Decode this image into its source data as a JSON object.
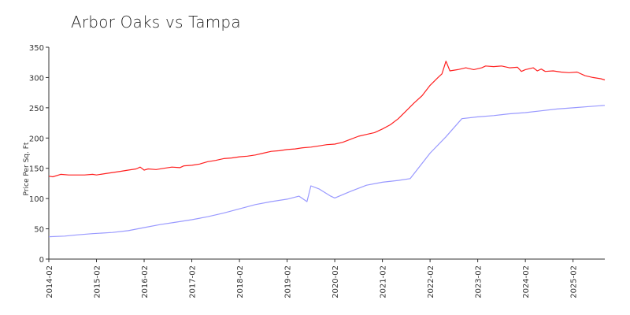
{
  "chart_data": {
    "type": "line",
    "title": "Arbor Oaks vs Tampa",
    "ylabel": "Price Per Sq. Ft",
    "xlabel": "",
    "ylim": [
      0,
      350
    ],
    "yticks": [
      0,
      50,
      100,
      150,
      200,
      250,
      300,
      350
    ],
    "xlim": [
      "2014-02",
      "2025-10"
    ],
    "xticks": [
      "2014-02",
      "2015-02",
      "2016-02",
      "2017-02",
      "2018-02",
      "2019-02",
      "2020-02",
      "2021-02",
      "2022-02",
      "2023-02",
      "2024-02",
      "2025-02"
    ],
    "grid": false,
    "legend": "none",
    "series": [
      {
        "color": "#ff2020",
        "points": [
          [
            "2014-02",
            137
          ],
          [
            "2014-03",
            136
          ],
          [
            "2014-05",
            140
          ],
          [
            "2014-07",
            139
          ],
          [
            "2014-09",
            139
          ],
          [
            "2014-11",
            139
          ],
          [
            "2015-01",
            140
          ],
          [
            "2015-02",
            139
          ],
          [
            "2015-04",
            141
          ],
          [
            "2015-06",
            143
          ],
          [
            "2015-08",
            145
          ],
          [
            "2015-10",
            147
          ],
          [
            "2015-12",
            149
          ],
          [
            "2016-01",
            152
          ],
          [
            "2016-02",
            147
          ],
          [
            "2016-03",
            149
          ],
          [
            "2016-05",
            148
          ],
          [
            "2016-07",
            150
          ],
          [
            "2016-09",
            152
          ],
          [
            "2016-11",
            151
          ],
          [
            "2016-12",
            154
          ],
          [
            "2017-02",
            155
          ],
          [
            "2017-04",
            157
          ],
          [
            "2017-06",
            161
          ],
          [
            "2017-08",
            163
          ],
          [
            "2017-10",
            166
          ],
          [
            "2017-12",
            167
          ],
          [
            "2018-02",
            169
          ],
          [
            "2018-04",
            170
          ],
          [
            "2018-06",
            172
          ],
          [
            "2018-08",
            175
          ],
          [
            "2018-10",
            178
          ],
          [
            "2018-12",
            179
          ],
          [
            "2019-02",
            181
          ],
          [
            "2019-04",
            182
          ],
          [
            "2019-06",
            184
          ],
          [
            "2019-08",
            185
          ],
          [
            "2019-10",
            187
          ],
          [
            "2019-12",
            189
          ],
          [
            "2020-02",
            190
          ],
          [
            "2020-04",
            193
          ],
          [
            "2020-06",
            198
          ],
          [
            "2020-08",
            203
          ],
          [
            "2020-10",
            206
          ],
          [
            "2020-12",
            209
          ],
          [
            "2021-02",
            215
          ],
          [
            "2021-04",
            222
          ],
          [
            "2021-06",
            232
          ],
          [
            "2021-08",
            245
          ],
          [
            "2021-10",
            258
          ],
          [
            "2021-12",
            270
          ],
          [
            "2022-02",
            287
          ],
          [
            "2022-04",
            300
          ],
          [
            "2022-05",
            306
          ],
          [
            "2022-06",
            327
          ],
          [
            "2022-07",
            311
          ],
          [
            "2022-09",
            313
          ],
          [
            "2022-11",
            316
          ],
          [
            "2023-01",
            313
          ],
          [
            "2023-03",
            316
          ],
          [
            "2023-04",
            319
          ],
          [
            "2023-06",
            318
          ],
          [
            "2023-08",
            319
          ],
          [
            "2023-10",
            316
          ],
          [
            "2023-12",
            317
          ],
          [
            "2024-01",
            310
          ],
          [
            "2024-02",
            313
          ],
          [
            "2024-04",
            316
          ],
          [
            "2024-05",
            311
          ],
          [
            "2024-06",
            314
          ],
          [
            "2024-07",
            310
          ],
          [
            "2024-09",
            311
          ],
          [
            "2024-11",
            309
          ],
          [
            "2025-01",
            308
          ],
          [
            "2025-03",
            309
          ],
          [
            "2025-05",
            303
          ],
          [
            "2025-07",
            300
          ],
          [
            "2025-09",
            298
          ],
          [
            "2025-10",
            296
          ]
        ]
      },
      {
        "color": "#9999ff",
        "points": [
          [
            "2014-02",
            37
          ],
          [
            "2014-06",
            38
          ],
          [
            "2014-09",
            40
          ],
          [
            "2015-01",
            42
          ],
          [
            "2015-06",
            44
          ],
          [
            "2015-10",
            47
          ],
          [
            "2016-02",
            52
          ],
          [
            "2016-06",
            57
          ],
          [
            "2016-10",
            61
          ],
          [
            "2017-02",
            65
          ],
          [
            "2017-06",
            70
          ],
          [
            "2017-10",
            76
          ],
          [
            "2018-02",
            83
          ],
          [
            "2018-06",
            90
          ],
          [
            "2018-10",
            95
          ],
          [
            "2019-02",
            99
          ],
          [
            "2019-05",
            104
          ],
          [
            "2019-07",
            95
          ],
          [
            "2019-08",
            121
          ],
          [
            "2019-10",
            116
          ],
          [
            "2020-01",
            104
          ],
          [
            "2020-02",
            101
          ],
          [
            "2020-06",
            112
          ],
          [
            "2020-10",
            122
          ],
          [
            "2021-02",
            127
          ],
          [
            "2021-06",
            130
          ],
          [
            "2021-09",
            133
          ],
          [
            "2022-02",
            175
          ],
          [
            "2022-06",
            202
          ],
          [
            "2022-10",
            232
          ],
          [
            "2023-02",
            235
          ],
          [
            "2023-06",
            237
          ],
          [
            "2023-10",
            240
          ],
          [
            "2024-02",
            242
          ],
          [
            "2024-06",
            245
          ],
          [
            "2024-10",
            248
          ],
          [
            "2025-02",
            250
          ],
          [
            "2025-06",
            252
          ],
          [
            "2025-10",
            254
          ]
        ]
      }
    ]
  }
}
